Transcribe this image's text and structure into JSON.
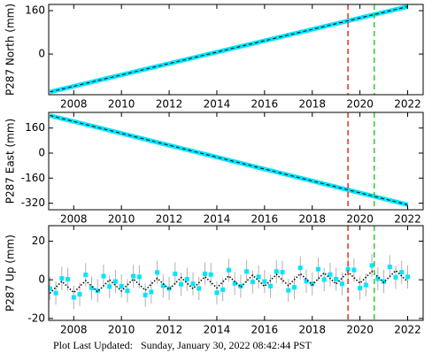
{
  "chart_data": [
    {
      "type": "line",
      "ylabel": "P287 North (mm)",
      "xlim": [
        2006.95,
        2022.65
      ],
      "xticks": [
        2008,
        2010,
        2012,
        2014,
        2016,
        2018,
        2020,
        2022
      ],
      "ylim": [
        -150,
        183
      ],
      "yticks": [
        0,
        160
      ],
      "events": [
        {
          "x": 2019.5,
          "color": "#e8301c"
        },
        {
          "x": 2020.6,
          "color": "#2ecc2e"
        }
      ],
      "x": [
        2007,
        2007.5,
        2008,
        2008.5,
        2009,
        2009.5,
        2010,
        2010.5,
        2011,
        2011.5,
        2012,
        2012.5,
        2013,
        2013.5,
        2014,
        2014.5,
        2015,
        2015.5,
        2016,
        2016.5,
        2017,
        2017.5,
        2018,
        2018.5,
        2019,
        2019.5,
        2020,
        2020.5,
        2021,
        2021.5,
        2022
      ],
      "series": [
        {
          "color": "#00e5ff",
          "style": "band",
          "values": [
            -140,
            -129.5,
            -119,
            -108.5,
            -98,
            -87.5,
            -77,
            -66.5,
            -56,
            -45.5,
            -35,
            -24.5,
            -14,
            -3.5,
            7,
            17.5,
            28,
            38.5,
            49,
            59.5,
            70,
            80.5,
            91,
            101.5,
            112,
            122.5,
            133,
            143.5,
            154,
            164.5,
            175
          ]
        },
        {
          "color": "#000000",
          "style": "dashed",
          "values": [
            -140,
            -129.5,
            -119,
            -108.5,
            -98,
            -87.5,
            -77,
            -66.5,
            -56,
            -45.5,
            -35,
            -24.5,
            -14,
            -3.5,
            7,
            17.5,
            28,
            38.5,
            49,
            59.5,
            70,
            80.5,
            91,
            101.5,
            112,
            122.5,
            133,
            143.5,
            154,
            164.5,
            175
          ]
        }
      ]
    },
    {
      "type": "line",
      "ylabel": "P287 East (mm)",
      "xlim": [
        2006.95,
        2022.65
      ],
      "xticks": [
        2008,
        2010,
        2012,
        2014,
        2016,
        2018,
        2020,
        2022
      ],
      "ylim": [
        -362,
        260
      ],
      "yticks": [
        -320,
        -160,
        0,
        160
      ],
      "events": [
        {
          "x": 2019.5,
          "color": "#e8301c"
        },
        {
          "x": 2020.6,
          "color": "#2ecc2e"
        }
      ],
      "x": [
        2007,
        2007.5,
        2008,
        2008.5,
        2009,
        2009.5,
        2010,
        2010.5,
        2011,
        2011.5,
        2012,
        2012.5,
        2013,
        2013.5,
        2014,
        2014.5,
        2015,
        2015.5,
        2016,
        2016.5,
        2017,
        2017.5,
        2018,
        2018.5,
        2019,
        2019.5,
        2020,
        2020.5,
        2021,
        2021.5,
        2022
      ],
      "series": [
        {
          "color": "#00e5ff",
          "style": "band",
          "values": [
            240,
            221,
            202,
            183,
            164,
            145,
            126,
            107,
            88,
            69,
            50,
            31,
            12,
            -7,
            -26,
            -45,
            -64,
            -83,
            -102,
            -121,
            -140,
            -159,
            -178,
            -197,
            -216,
            -235,
            -254,
            -273,
            -292,
            -311,
            -330
          ]
        },
        {
          "color": "#000000",
          "style": "dashed",
          "values": [
            240,
            221,
            202,
            183,
            164,
            145,
            126,
            107,
            88,
            69,
            50,
            31,
            12,
            -7,
            -26,
            -45,
            -64,
            -83,
            -102,
            -121,
            -140,
            -159,
            -178,
            -197,
            -216,
            -235,
            -254,
            -273,
            -292,
            -311,
            -330
          ]
        }
      ]
    },
    {
      "type": "line",
      "ylabel": "P287 Up (mm)",
      "xlim": [
        2006.95,
        2022.65
      ],
      "xticks": [
        2008,
        2010,
        2012,
        2014,
        2016,
        2018,
        2020,
        2022
      ],
      "ylim": [
        -21,
        28
      ],
      "yticks": [
        -20,
        0,
        20
      ],
      "events": [
        {
          "x": 2019.5,
          "color": "#e8301c"
        },
        {
          "x": 2020.6,
          "color": "#2ecc2e"
        }
      ],
      "x": [
        2007,
        2007.25,
        2007.5,
        2007.75,
        2008,
        2008.25,
        2008.5,
        2008.75,
        2009,
        2009.25,
        2009.5,
        2009.75,
        2010,
        2010.25,
        2010.5,
        2010.75,
        2011,
        2011.25,
        2011.5,
        2011.75,
        2012,
        2012.25,
        2012.5,
        2012.75,
        2013,
        2013.25,
        2013.5,
        2013.75,
        2014,
        2014.25,
        2014.5,
        2014.75,
        2015,
        2015.25,
        2015.5,
        2015.75,
        2016,
        2016.25,
        2016.5,
        2016.75,
        2017,
        2017.25,
        2017.5,
        2017.75,
        2018,
        2018.25,
        2018.5,
        2018.75,
        2019,
        2019.25,
        2019.5,
        2019.75,
        2020,
        2020.25,
        2020.5,
        2020.75,
        2021,
        2021.25,
        2021.5,
        2021.75,
        2022
      ],
      "series": [
        {
          "color": "#00e5ff",
          "style": "points",
          "error": 6,
          "error_color": "#b0b0b0",
          "values": [
            -4.5,
            -6.9,
            0.7,
            0.3,
            -9.1,
            -7.5,
            2.6,
            -4.3,
            -5.7,
            1.9,
            -3.5,
            -0.9,
            -3.3,
            -5.7,
            1.9,
            1.5,
            -7.9,
            -6.3,
            3.8,
            -3.1,
            -4.5,
            3.1,
            -2.3,
            0.3,
            -2.1,
            -4.5,
            3.1,
            2.7,
            -6.7,
            -5.1,
            5,
            -1.9,
            -3.3,
            4.3,
            -1.1,
            1.5,
            -0.9,
            -3.3,
            4.3,
            3.9,
            -5.5,
            -3.9,
            6.2,
            -0.7,
            -2.1,
            5.5,
            0.1,
            2.7,
            0.3,
            -2.1,
            5.5,
            5.1,
            -4.3,
            -2.7,
            7.4,
            0.5,
            -0.9,
            6.7,
            1.3,
            3.9,
            1.5
          ]
        },
        {
          "color": "#000000",
          "style": "dotted",
          "values": [
            -7,
            -3.9,
            -0.8,
            -3.7,
            -6.6,
            -3.5,
            -0.4,
            -3.3,
            -6.2,
            -3.1,
            0,
            -2.9,
            -5.8,
            -2.7,
            0.4,
            -2.5,
            -5.4,
            -2.3,
            0.8,
            -2.1,
            -5,
            -1.9,
            1.2,
            -1.7,
            -4.6,
            -1.5,
            1.6,
            -1.3,
            -4.2,
            -1.1,
            2,
            -0.9,
            -3.8,
            -0.7,
            2.4,
            -0.5,
            -3.4,
            -0.3,
            2.8,
            -0.1,
            -3,
            0.1,
            3.2,
            0.3,
            -2.6,
            0.5,
            3.6,
            0.7,
            -2.2,
            0.9,
            4,
            1.1,
            -1.8,
            1.3,
            4.4,
            1.5,
            -1.4,
            1.7,
            4.8,
            1.9,
            -1
          ]
        }
      ]
    }
  ],
  "footer": "Plot Last Updated:   Sunday, January 30, 2022 08:42:44 PST"
}
